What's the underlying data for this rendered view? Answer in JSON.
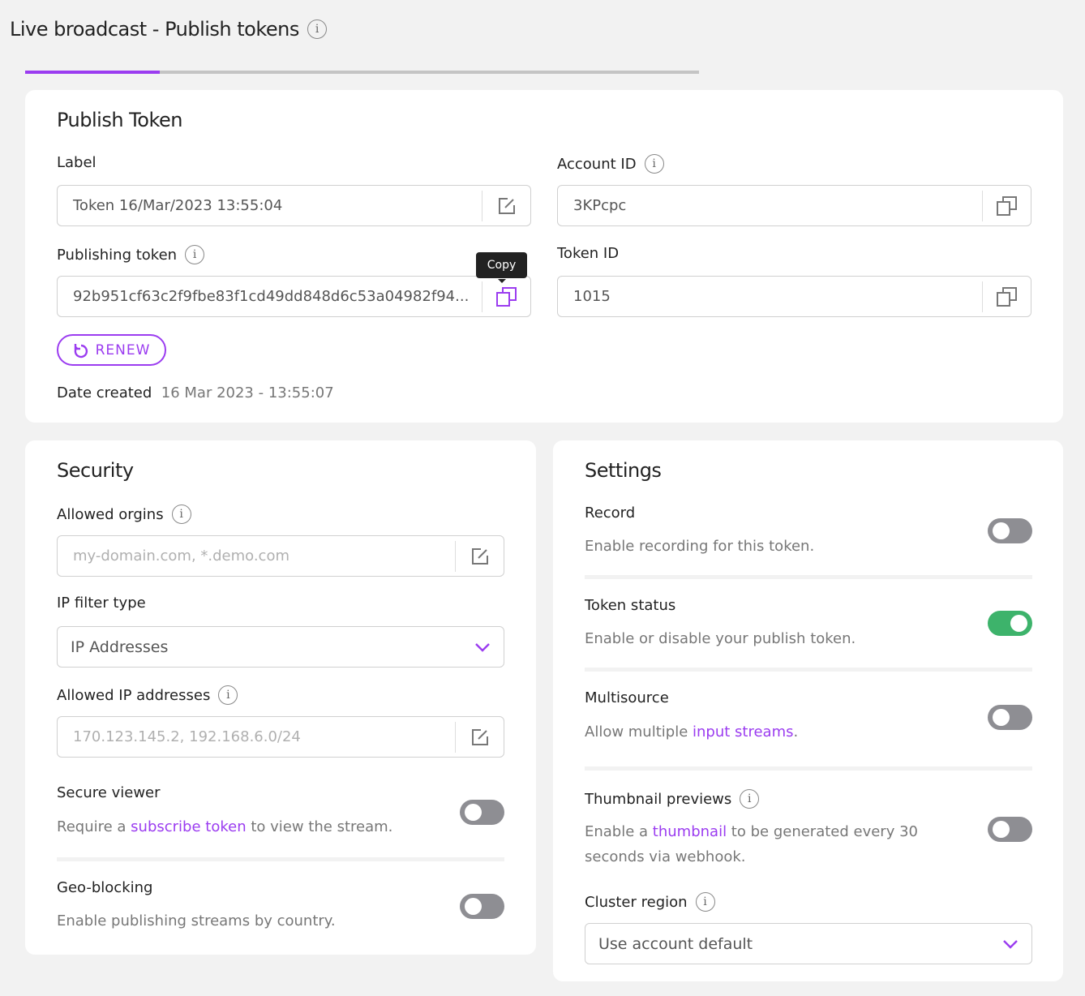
{
  "header": {
    "title": "Live broadcast - Publish tokens",
    "progress_percent": 20
  },
  "colors": {
    "accent": "#9b3cf0",
    "toggle_on": "#3db36b",
    "toggle_off": "#8e8e93"
  },
  "publish_token": {
    "title": "Publish Token",
    "label_label": "Label",
    "label_value": "Token 16/Mar/2023 13:55:04",
    "account_id_label": "Account ID",
    "account_id_value": "3KPcpc",
    "publishing_token_label": "Publishing token",
    "publishing_token_value": "92b951cf63c2f9fbe83f1cd49dd848d6c53a04982f94...",
    "token_id_label": "Token ID",
    "token_id_value": "1015",
    "copy_tooltip": "Copy",
    "renew_label": "RENEW",
    "date_created_label": "Date created",
    "date_created_value": "16 Mar 2023 - 13:55:07"
  },
  "security": {
    "title": "Security",
    "allowed_origins_label": "Allowed orgins",
    "allowed_origins_placeholder": "my-domain.com, *.demo.com",
    "ip_filter_label": "IP filter type",
    "ip_filter_value": "IP Addresses",
    "allowed_ip_label": "Allowed IP addresses",
    "allowed_ip_placeholder": "170.123.145.2, 192.168.6.0/24",
    "secure_viewer_label": "Secure viewer",
    "secure_viewer_pre": "Require a ",
    "secure_viewer_link": "subscribe token",
    "secure_viewer_post": " to view the stream.",
    "secure_viewer_on": false,
    "geo_label": "Geo-blocking",
    "geo_desc": "Enable publishing streams by country.",
    "geo_on": false
  },
  "settings": {
    "title": "Settings",
    "record_label": "Record",
    "record_desc": "Enable recording for this token.",
    "record_on": false,
    "status_label": "Token status",
    "status_desc": "Enable or disable your publish token.",
    "status_on": true,
    "multi_label": "Multisource",
    "multi_pre": "Allow multiple ",
    "multi_link": "input streams",
    "multi_post": ".",
    "multi_on": false,
    "thumb_label": "Thumbnail previews",
    "thumb_pre": "Enable a ",
    "thumb_link": "thumbnail",
    "thumb_post": " to be generated every 30 seconds via webhook.",
    "thumb_on": false,
    "cluster_label": "Cluster region",
    "cluster_value": "Use account default"
  }
}
